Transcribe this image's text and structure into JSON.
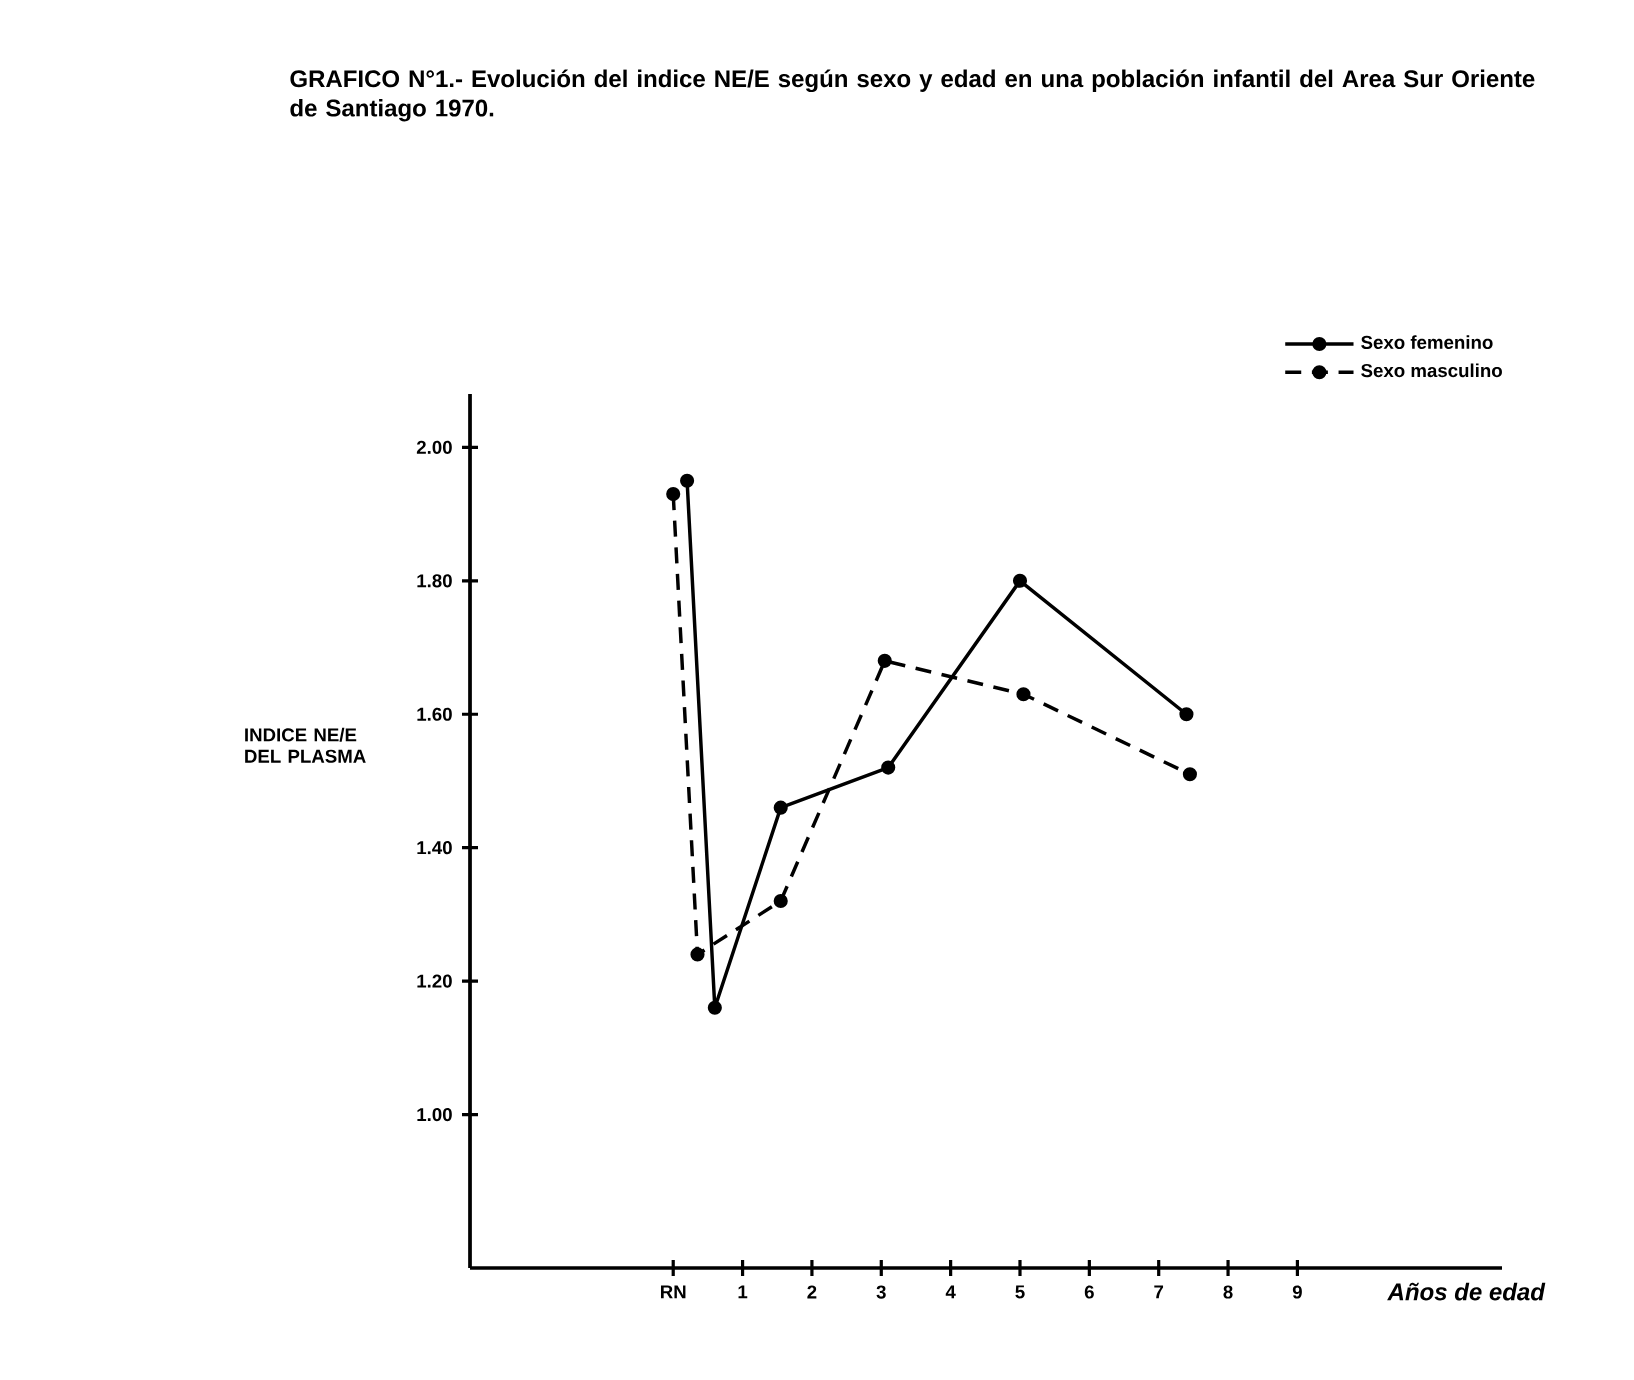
{
  "chart_data": {
    "type": "line",
    "title": "GRAFICO N°1.- Evolución del indice NE/E según sexo y edad en una población infantil del Area Sur Oriente de Santiago 1970.",
    "xlabel": "Años de edad",
    "ylabel": "INDICE NE/E DEL PLASMA",
    "xlim": [
      -2.93,
      11.95
    ],
    "ylim": [
      0.77,
      2.08
    ],
    "xticks": [
      {
        "value": 0,
        "label": "RN"
      },
      1,
      2,
      3,
      4,
      5,
      6,
      7,
      8,
      9
    ],
    "yticks": [
      {
        "value": 1,
        "label": "1.00"
      },
      {
        "value": 1.2,
        "label": "1.20"
      },
      {
        "value": 1.4,
        "label": "1.40"
      },
      {
        "value": 1.6,
        "label": "1.60"
      },
      {
        "value": 1.8,
        "label": "1.80"
      },
      {
        "value": 2,
        "label": "2.00"
      }
    ],
    "series": [
      {
        "name": "Sexo femenino",
        "color": "#000000",
        "line_style": "solid",
        "x": [
          0.2,
          0.6,
          1.55,
          3.1,
          5.0,
          7.4
        ],
        "values": [
          1.95,
          1.16,
          1.46,
          1.52,
          1.8,
          1.6
        ]
      },
      {
        "name": "Sexo masculino",
        "color": "#000000",
        "line_style": "dashed",
        "x": [
          0.0,
          0.35,
          1.55,
          3.05,
          5.05,
          7.45
        ],
        "values": [
          1.93,
          1.24,
          1.32,
          1.68,
          1.63,
          1.51
        ]
      }
    ],
    "marker": "circle",
    "legend": "top right"
  }
}
